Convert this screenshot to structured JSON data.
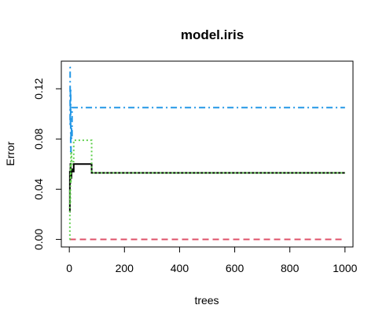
{
  "chart_data": {
    "type": "line",
    "title": "model.iris",
    "xlabel": "trees",
    "ylabel": "Error",
    "xlim": [
      -29,
      1029
    ],
    "ylim": [
      -0.006,
      0.142
    ],
    "x_ticks": [
      0,
      200,
      400,
      600,
      800,
      1000
    ],
    "x_tick_labels": [
      "0",
      "200",
      "400",
      "600",
      "800",
      "1000"
    ],
    "y_ticks": [
      0.0,
      0.04,
      0.08,
      0.12
    ],
    "y_tick_labels": [
      "0.00",
      "0.04",
      "0.08",
      "0.12"
    ],
    "grid": false,
    "legend": "none",
    "series": [
      {
        "color": "#000000",
        "dash": "solid",
        "points": [
          [
            1,
            0.022
          ],
          [
            2,
            0.054
          ],
          [
            3,
            0.045
          ],
          [
            4,
            0.06
          ],
          [
            5,
            0.049
          ],
          [
            8,
            0.056
          ],
          [
            10,
            0.054
          ],
          [
            15,
            0.054
          ],
          [
            16,
            0.06
          ],
          [
            80,
            0.06
          ],
          [
            81,
            0.053
          ],
          [
            1000,
            0.053
          ]
        ]
      },
      {
        "color": "#DF536B",
        "dash": "dashed",
        "points": [
          [
            1,
            0.0
          ],
          [
            1000,
            0.0
          ]
        ]
      },
      {
        "color": "#61D04F",
        "dash": "dotted",
        "points": [
          [
            1,
            0.0
          ],
          [
            2,
            0.04
          ],
          [
            3,
            0.03
          ],
          [
            4,
            0.06
          ],
          [
            5,
            0.045
          ],
          [
            6,
            0.07
          ],
          [
            8,
            0.06
          ],
          [
            10,
            0.062
          ],
          [
            15,
            0.062
          ],
          [
            16,
            0.079
          ],
          [
            80,
            0.079
          ],
          [
            81,
            0.053
          ],
          [
            1000,
            0.053
          ]
        ]
      },
      {
        "color": "#2297E6",
        "dash": "dotdash",
        "points": [
          [
            1,
            0.137
          ],
          [
            3,
            0.09
          ],
          [
            4,
            0.12
          ],
          [
            5,
            0.07
          ],
          [
            6,
            0.09
          ],
          [
            8,
            0.08
          ],
          [
            10,
            0.105
          ],
          [
            1000,
            0.105
          ]
        ]
      }
    ]
  }
}
